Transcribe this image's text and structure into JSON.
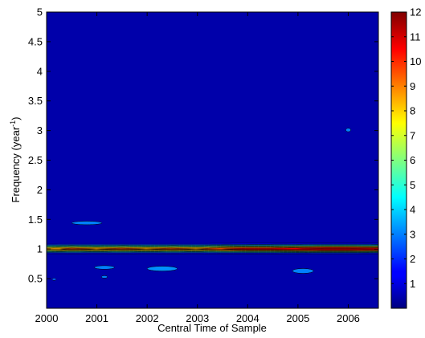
{
  "chart_data": {
    "type": "heatmap",
    "title": "",
    "xlabel": "Central Time of Sample",
    "ylabel": "Frequency (year",
    "ylabel_superscript": "-1",
    "ylabel_suffix": ")",
    "xlim": [
      2000,
      2006.6
    ],
    "ylim": [
      0,
      5
    ],
    "clim": [
      0,
      12
    ],
    "colormap": "jet",
    "background_value": 0,
    "x_ticks": [
      2000,
      2001,
      2002,
      2003,
      2004,
      2005,
      2006
    ],
    "x_tick_labels": [
      "2000",
      "2001",
      "2002",
      "2003",
      "2004",
      "2005",
      "2006"
    ],
    "y_ticks": [
      0.5,
      1,
      1.5,
      2,
      2.5,
      3,
      3.5,
      4,
      4.5,
      5
    ],
    "y_tick_labels": [
      "0.5",
      "1",
      "1.5",
      "2",
      "2.5",
      "3",
      "3.5",
      "4",
      "4.5",
      "5"
    ],
    "colorbar_ticks": [
      1,
      2,
      3,
      4,
      5,
      6,
      7,
      8,
      9,
      10,
      11,
      12
    ],
    "colorbar_tick_labels": [
      "1",
      "2",
      "3",
      "4",
      "5",
      "6",
      "7",
      "8",
      "9",
      "10",
      "11",
      "12"
    ],
    "annual_band": {
      "frequency": 1.0,
      "profile": [
        {
          "x": 2000.0,
          "peak": 8.5
        },
        {
          "x": 2000.5,
          "peak": 9.5
        },
        {
          "x": 2001.0,
          "peak": 9.0
        },
        {
          "x": 2001.5,
          "peak": 9.5
        },
        {
          "x": 2002.0,
          "peak": 9.0
        },
        {
          "x": 2002.5,
          "peak": 9.5
        },
        {
          "x": 2003.0,
          "peak": 9.0
        },
        {
          "x": 2003.5,
          "peak": 10.0
        },
        {
          "x": 2004.0,
          "peak": 10.5
        },
        {
          "x": 2004.5,
          "peak": 10.5
        },
        {
          "x": 2005.0,
          "peak": 11.0
        },
        {
          "x": 2005.5,
          "peak": 11.5
        },
        {
          "x": 2006.0,
          "peak": 11.5
        },
        {
          "x": 2006.6,
          "peak": 11.0
        }
      ]
    },
    "features": [
      {
        "x": 2000.15,
        "y": 0.49,
        "value": 2.5,
        "x_extent": 0.08,
        "y_extent": 0.02
      },
      {
        "x": 2000.8,
        "y": 1.44,
        "value": 3.0,
        "x_extent": 0.6,
        "y_extent": 0.03
      },
      {
        "x": 2001.15,
        "y": 0.69,
        "value": 3.0,
        "x_extent": 0.4,
        "y_extent": 0.03
      },
      {
        "x": 2001.15,
        "y": 0.53,
        "value": 3.0,
        "x_extent": 0.12,
        "y_extent": 0.02
      },
      {
        "x": 2002.3,
        "y": 0.67,
        "value": 3.2,
        "x_extent": 0.6,
        "y_extent": 0.04
      },
      {
        "x": 2005.1,
        "y": 0.63,
        "value": 3.0,
        "x_extent": 0.42,
        "y_extent": 0.04
      },
      {
        "x": 2006.0,
        "y": 3.01,
        "value": 3.0,
        "x_extent": 0.1,
        "y_extent": 0.03
      }
    ]
  }
}
